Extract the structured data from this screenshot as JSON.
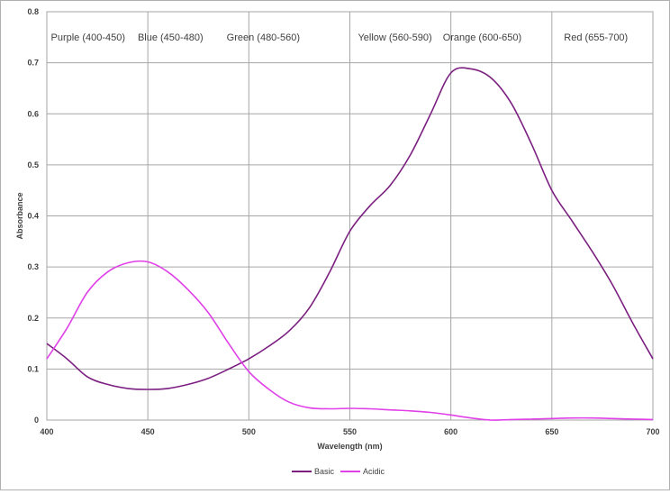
{
  "chart_data": {
    "type": "line",
    "xlabel": "Wavelength (nm)",
    "ylabel": "Absorbance",
    "xlim": [
      400,
      700
    ],
    "ylim": [
      0,
      0.8
    ],
    "x_ticks": [
      400,
      450,
      500,
      550,
      600,
      650,
      700
    ],
    "y_ticks": [
      "0",
      "0.1",
      "0.2",
      "0.3",
      "0.4",
      "0.5",
      "0.6",
      "0.7",
      "0.8"
    ],
    "grid": true,
    "legend_position": "bottom-center",
    "annotations": [
      {
        "text": "Purple (400-450)",
        "x": 402
      },
      {
        "text": "Blue (450-480)",
        "x": 445
      },
      {
        "text": "Green (480-560)",
        "x": 489
      },
      {
        "text": "Yellow (560-590)",
        "x": 554
      },
      {
        "text": "Orange (600-650)",
        "x": 596
      },
      {
        "text": "Red (655-700)",
        "x": 656
      }
    ],
    "x": [
      400,
      410,
      420,
      430,
      440,
      450,
      460,
      470,
      480,
      490,
      500,
      510,
      520,
      530,
      540,
      550,
      560,
      570,
      580,
      590,
      600,
      610,
      620,
      630,
      640,
      650,
      660,
      670,
      680,
      690,
      700
    ],
    "series": [
      {
        "name": "Basic",
        "color": "#7b2080",
        "values": [
          0.15,
          0.12,
          0.085,
          0.07,
          0.062,
          0.06,
          0.062,
          0.07,
          0.082,
          0.1,
          0.12,
          0.145,
          0.175,
          0.22,
          0.29,
          0.37,
          0.42,
          0.46,
          0.52,
          0.6,
          0.68,
          0.688,
          0.67,
          0.62,
          0.54,
          0.45,
          0.39,
          0.33,
          0.265,
          0.19,
          0.12
        ]
      },
      {
        "name": "Acidic",
        "color": "#e040e8",
        "values": [
          0.12,
          0.18,
          0.25,
          0.29,
          0.308,
          0.31,
          0.29,
          0.255,
          0.21,
          0.15,
          0.095,
          0.06,
          0.035,
          0.024,
          0.022,
          0.023,
          0.022,
          0.02,
          0.018,
          0.015,
          0.01,
          0.004,
          0.0,
          0.001,
          0.002,
          0.003,
          0.004,
          0.004,
          0.003,
          0.002,
          0.001
        ]
      }
    ]
  }
}
